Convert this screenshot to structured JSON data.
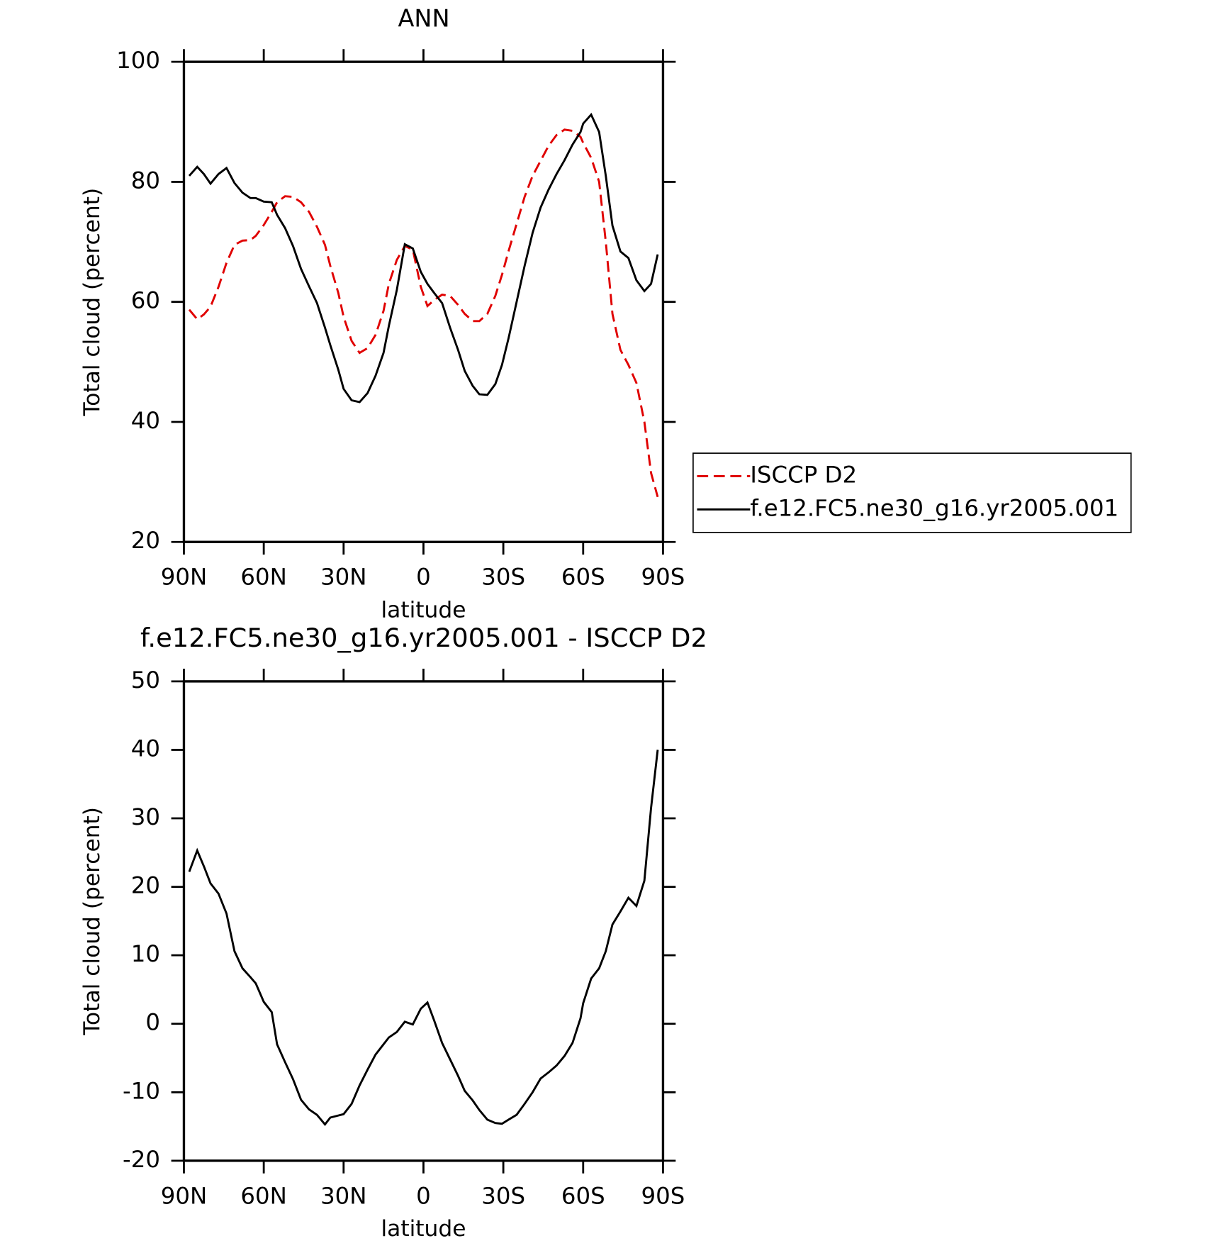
{
  "chart_data": [
    {
      "type": "line",
      "title": "ANN",
      "x_label": "latitude",
      "y_label": "Total cloud (percent)",
      "x": [
        88,
        85,
        82.5,
        80,
        77,
        74,
        71,
        68,
        65,
        63,
        60,
        57,
        55,
        52,
        49,
        46,
        43,
        40,
        37,
        35,
        32,
        30,
        27,
        24,
        21,
        18,
        15,
        13,
        10,
        7,
        4,
        1,
        -1.5,
        -4,
        -7,
        -10,
        -13,
        -15.5,
        -18.5,
        -21,
        -24,
        -27,
        -29.5,
        -32,
        -35,
        -38,
        -41,
        -44,
        -47,
        -50,
        -53,
        -56,
        -59,
        -60,
        -63,
        -66,
        -68.5,
        -71,
        -74,
        -77,
        -80,
        -83,
        -85.5,
        -88
      ],
      "series": [
        {
          "name": "ISCCP D2",
          "color": "#e00000",
          "dashed": true,
          "values": [
            58.7,
            57.1,
            57.9,
            59.2,
            62.5,
            66.5,
            69.5,
            70.2,
            70.3,
            71,
            72.8,
            75,
            76.6,
            77.6,
            77.5,
            76.6,
            75,
            72.5,
            69.5,
            66,
            61.5,
            57.5,
            53.5,
            51.5,
            52.3,
            54.5,
            58.5,
            63,
            67,
            69.3,
            68.7,
            62.5,
            59.3,
            60.3,
            61.2,
            61,
            59.5,
            58,
            56.8,
            56.8,
            58,
            61,
            64.5,
            68.5,
            73,
            77.5,
            81,
            83.5,
            86,
            87.8,
            88.7,
            88.5,
            87.5,
            86.5,
            84,
            80,
            70,
            58,
            52,
            49.5,
            46.5,
            40,
            31.5,
            27.5
          ]
        },
        {
          "name": "f.e12.FC5.ne30_g16.yr2005.001",
          "color": "#000000",
          "dashed": false,
          "values": [
            81,
            82.5,
            81.3,
            79.7,
            81.3,
            82.3,
            79.8,
            78.2,
            77.3,
            77.3,
            76.7,
            76.6,
            74.5,
            72.3,
            69.3,
            65.5,
            62.6,
            59.8,
            55.7,
            52.8,
            48.7,
            45.5,
            43.6,
            43.3,
            44.8,
            47.7,
            51.5,
            56,
            62,
            69.6,
            68.9,
            65,
            63,
            61.5,
            59.8,
            55.7,
            52,
            48.5,
            46,
            44.6,
            44.5,
            46.3,
            49.5,
            54,
            60,
            66,
            71.5,
            75.7,
            78.7,
            81.3,
            83.6,
            86.2,
            88.3,
            89.7,
            91.2,
            88.3,
            81,
            72.7,
            68.4,
            67.3,
            63.6,
            61.8,
            63,
            67.9
          ]
        }
      ],
      "xlim": [
        90,
        -90
      ],
      "xticks": [
        {
          "value": 90,
          "label": "90N"
        },
        {
          "value": 60,
          "label": "60N"
        },
        {
          "value": 30,
          "label": "30N"
        },
        0,
        {
          "value": -30,
          "label": "30S"
        },
        {
          "value": -60,
          "label": "60S"
        },
        {
          "value": -90,
          "label": "90S"
        }
      ],
      "ylim": [
        20,
        100
      ],
      "yticks": [
        20,
        40,
        60,
        80,
        100
      ],
      "legend": "right"
    },
    {
      "type": "line",
      "title": "f.e12.FC5.ne30_g16.yr2005.001 - ISCCP D2",
      "x_label": "latitude",
      "y_label": "Total cloud (percent)",
      "x": [
        88,
        85,
        82.5,
        80,
        77,
        74,
        71,
        68,
        65,
        63,
        60,
        57,
        55,
        52,
        49,
        46,
        43,
        40,
        37,
        35,
        32,
        30,
        27,
        24,
        21,
        18,
        15,
        13,
        10,
        7,
        4,
        1,
        -1.5,
        -4,
        -7,
        -10,
        -13,
        -15.5,
        -18.5,
        -21,
        -24,
        -27,
        -29.5,
        -32,
        -35,
        -38,
        -41,
        -44,
        -47,
        -50,
        -53,
        -56,
        -59,
        -60,
        -63,
        -66,
        -68.5,
        -71,
        -74,
        -77,
        -80,
        -83,
        -85.5,
        -88
      ],
      "series": [
        {
          "color": "#000000",
          "dashed": false,
          "values": [
            22.2,
            25.3,
            23,
            20.5,
            19,
            16.1,
            10.6,
            8.1,
            6.8,
            5.9,
            3.2,
            1.7,
            -3,
            -5.6,
            -8.1,
            -11.1,
            -12.5,
            -13.3,
            -14.7,
            -13.7,
            -13.4,
            -13.2,
            -11.7,
            -9,
            -6.7,
            -4.5,
            -3,
            -2,
            -1.2,
            0.3,
            -0.1,
            2.2,
            3.1,
            0.5,
            -2.8,
            -5.2,
            -7.6,
            -9.8,
            -11.2,
            -12.6,
            -14,
            -14.5,
            -14.6,
            -14,
            -13.3,
            -11.7,
            -10,
            -8,
            -7.1,
            -6.1,
            -4.7,
            -2.8,
            0.8,
            3,
            6.6,
            8.1,
            10.6,
            14.5,
            16.4,
            18.4,
            17.2,
            20.9,
            31.5,
            40
          ]
        }
      ],
      "xlim": [
        90,
        -90
      ],
      "xticks": [
        {
          "value": 90,
          "label": "90N"
        },
        {
          "value": 60,
          "label": "60N"
        },
        {
          "value": 30,
          "label": "30N"
        },
        0,
        {
          "value": -30,
          "label": "30S"
        },
        {
          "value": -60,
          "label": "60S"
        },
        {
          "value": -90,
          "label": "90S"
        }
      ],
      "ylim": [
        -20,
        50
      ],
      "yticks": [
        -20,
        -10,
        0,
        10,
        20,
        30,
        40,
        50
      ]
    }
  ]
}
